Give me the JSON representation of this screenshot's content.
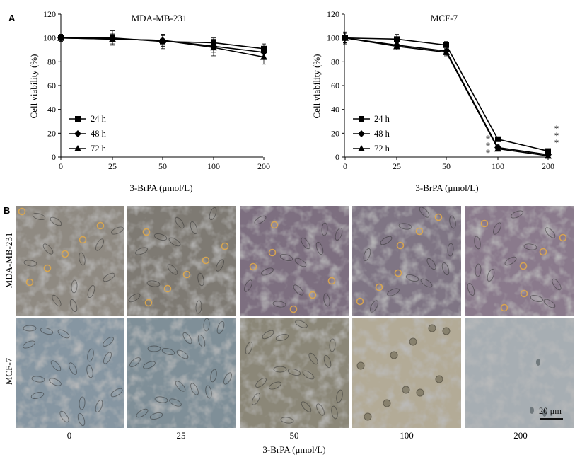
{
  "panel_a_label": "A",
  "panel_b_label": "B",
  "chart_data": [
    {
      "type": "line",
      "title": "MDA-MB-231",
      "xlabel": "3-BrPA (μmol/L)",
      "ylabel": "Cell viability (%)",
      "x": [
        "0",
        "25",
        "50",
        "100",
        "200"
      ],
      "ylim": [
        0,
        120
      ],
      "yticks": [
        "0",
        "20",
        "40",
        "60",
        "80",
        "100",
        "120"
      ],
      "legend_position": "bottom-left",
      "grid": false,
      "series": [
        {
          "name": "24 h",
          "marker": "square",
          "values": [
            100,
            100,
            97,
            96,
            91
          ],
          "errors": [
            3,
            6,
            6,
            4,
            4
          ]
        },
        {
          "name": "48 h",
          "marker": "diamond",
          "values": [
            100,
            99,
            98,
            93,
            88
          ],
          "errors": [
            3,
            5,
            5,
            5,
            5
          ]
        },
        {
          "name": "72 h",
          "marker": "triangle",
          "values": [
            100,
            99,
            98,
            92,
            84
          ],
          "errors": [
            3,
            4,
            4,
            7,
            6
          ]
        }
      ],
      "annotations": []
    },
    {
      "type": "line",
      "title": "MCF-7",
      "xlabel": "3-BrPA (μmol/L)",
      "ylabel": "Cell viability (%)",
      "x": [
        "0",
        "25",
        "50",
        "100",
        "200"
      ],
      "ylim": [
        0,
        120
      ],
      "yticks": [
        "0",
        "20",
        "40",
        "60",
        "80",
        "100",
        "120"
      ],
      "legend_position": "bottom-left",
      "grid": false,
      "series": [
        {
          "name": "24 h",
          "marker": "square",
          "values": [
            100,
            99,
            94,
            15,
            5
          ],
          "errors": [
            5,
            4,
            3,
            1,
            1
          ]
        },
        {
          "name": "48 h",
          "marker": "diamond",
          "values": [
            100,
            94,
            89,
            8,
            2
          ],
          "errors": [
            4,
            3,
            3,
            2,
            1
          ]
        },
        {
          "name": "72 h",
          "marker": "triangle",
          "values": [
            100,
            93,
            88,
            7,
            1
          ],
          "errors": [
            4,
            3,
            3,
            2,
            1
          ]
        }
      ],
      "annotations": [
        {
          "x": "100",
          "text": "*",
          "side": "left",
          "count": 3
        },
        {
          "x": "200",
          "text": "*",
          "side": "right",
          "count": 3
        }
      ]
    }
  ],
  "micrographs": {
    "row_labels": [
      "MDA-MB-231",
      "MCF-7"
    ],
    "column_labels": [
      "0",
      "25",
      "50",
      "100",
      "200"
    ],
    "xlabel": "3-BrPA (μmol/L)",
    "scale_bar": "20 μm"
  }
}
